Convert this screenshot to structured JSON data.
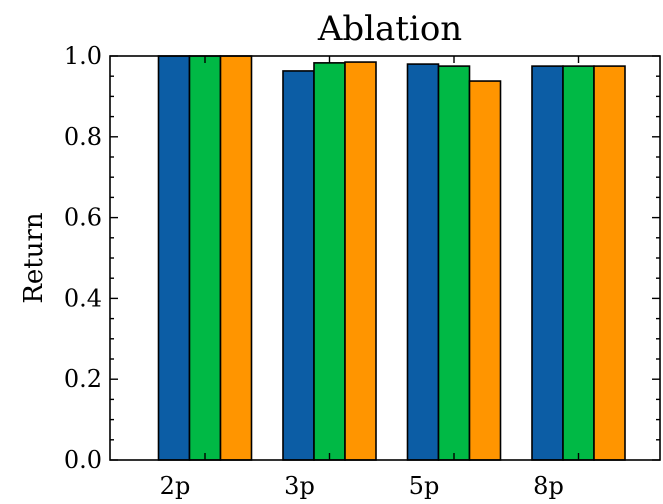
{
  "chart_data": {
    "type": "bar",
    "title": "Ablation",
    "xlabel": "",
    "ylabel": "Return",
    "categories": [
      "2p",
      "3p",
      "5p",
      "8p"
    ],
    "series": [
      {
        "values": [
          1.0,
          0.963,
          0.98,
          0.975
        ],
        "color": "#0c5da5"
      },
      {
        "values": [
          1.0,
          0.983,
          0.975,
          0.975
        ],
        "color": "#00b945"
      },
      {
        "values": [
          1.0,
          0.985,
          0.938,
          0.975
        ],
        "color": "#ff9500"
      }
    ],
    "ylim": [
      0,
      1.0
    ],
    "yticks": [
      0.0,
      0.2,
      0.4,
      0.6,
      0.8,
      1.0
    ],
    "ytick_labels": [
      "0.0",
      "0.2",
      "0.4",
      "0.6",
      "0.8",
      "1.0"
    ],
    "grid": false,
    "legend": "none"
  }
}
